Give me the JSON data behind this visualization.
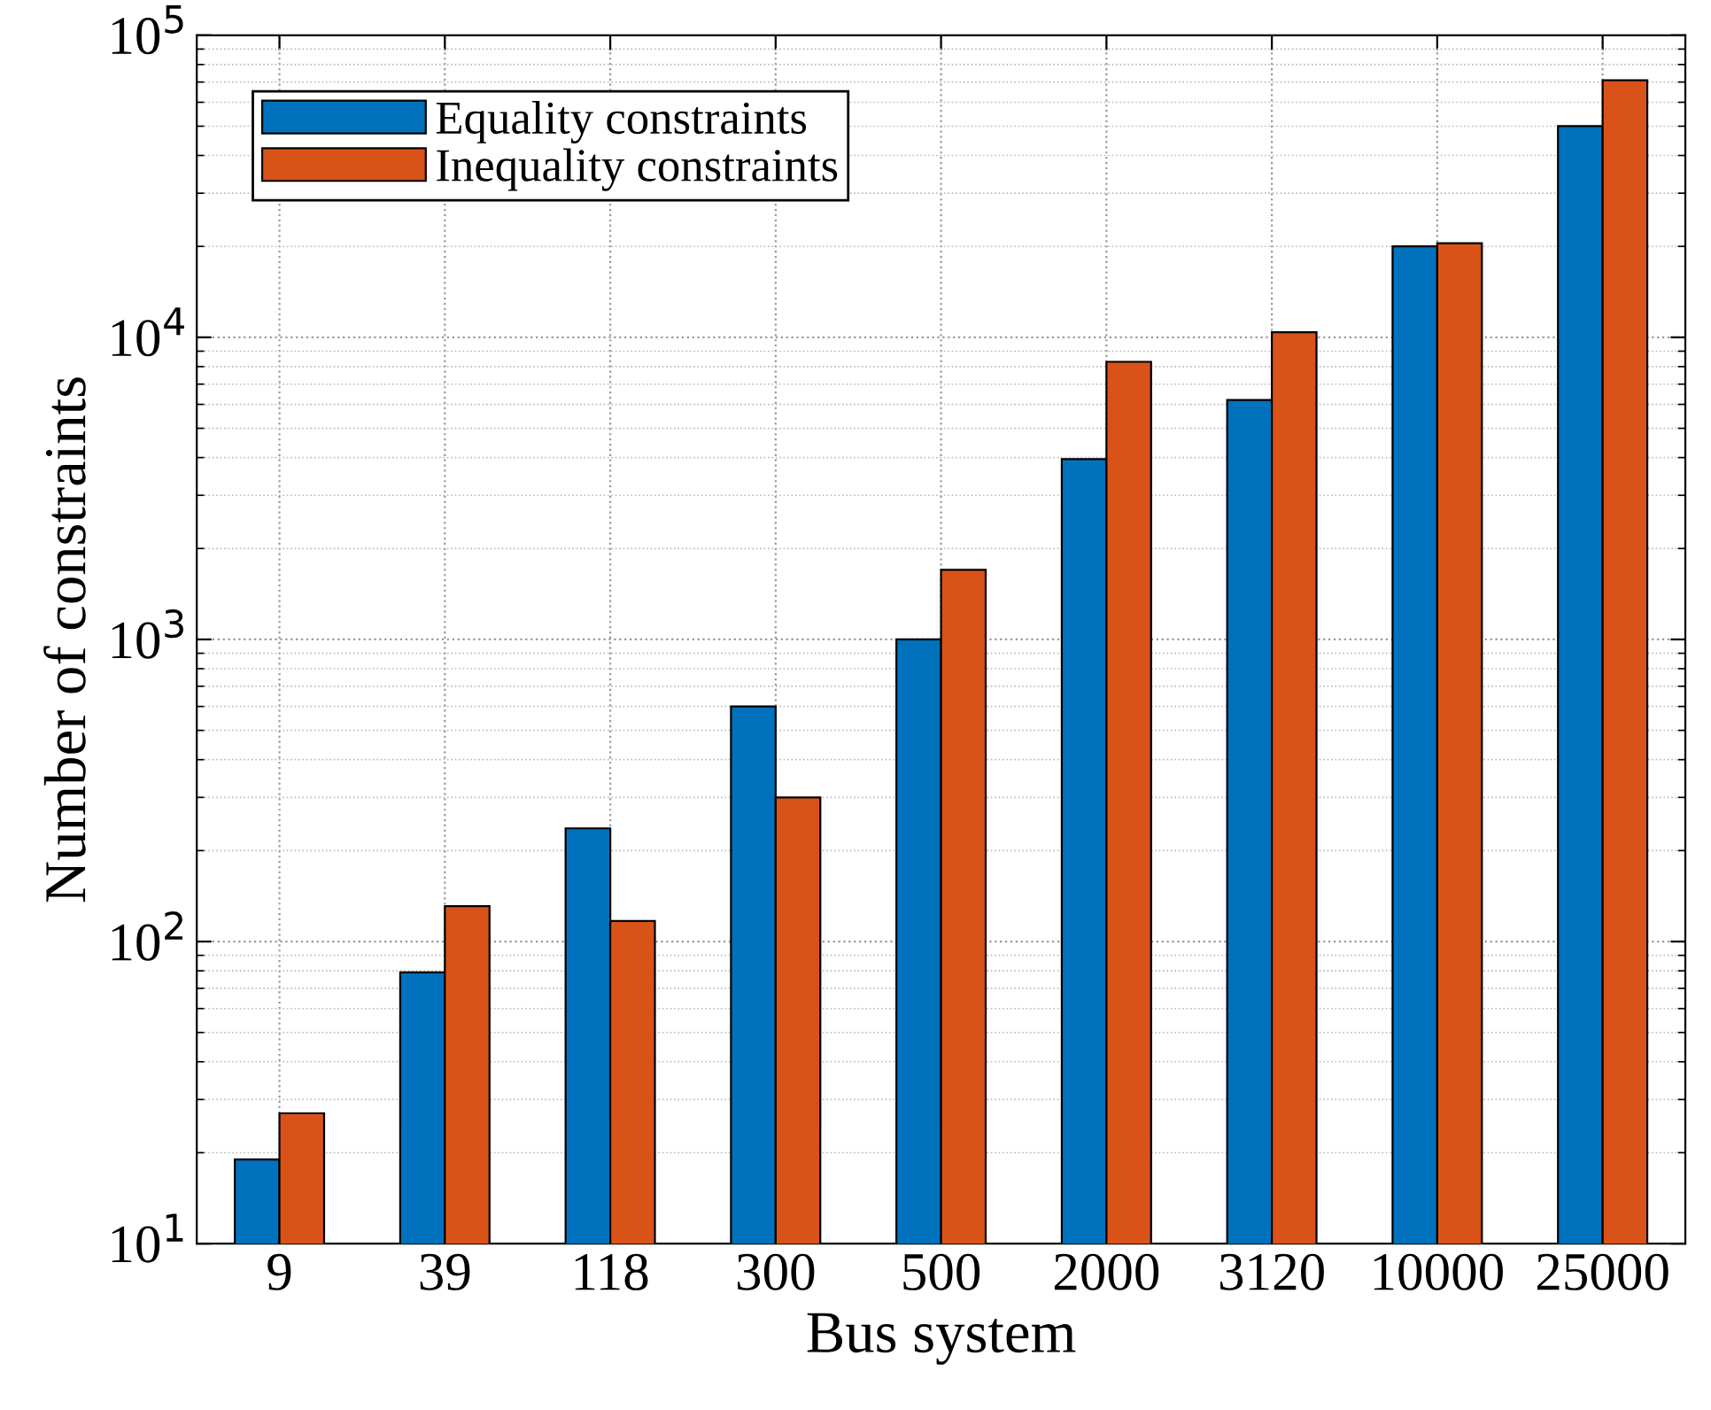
{
  "chart_data": {
    "type": "bar",
    "xlabel": "Bus system",
    "ylabel": "Number of constraints",
    "categories": [
      "9",
      "39",
      "118",
      "300",
      "500",
      "2000",
      "3120",
      "10000",
      "25000"
    ],
    "series": [
      {
        "name": "Equality constraints",
        "color": "#0072bd",
        "values": [
          19,
          79,
          237,
          600,
          1000,
          3950,
          6200,
          20000,
          50000
        ]
      },
      {
        "name": "Inequality constraints",
        "color": "#d95319",
        "values": [
          27,
          131,
          117,
          300,
          1700,
          8300,
          10400,
          20500,
          71000
        ]
      }
    ],
    "log": "y",
    "ylim": [
      10,
      100000
    ],
    "yticks": [
      {
        "value": 10,
        "label": "10$^{1}$"
      },
      {
        "value": 100,
        "label": "10$^{2}$"
      },
      {
        "value": 1000,
        "label": "10$^{3}$"
      },
      {
        "value": 10000,
        "label": "10$^{4}$"
      },
      {
        "value": 100000,
        "label": "10$^{5}$"
      }
    ],
    "grid": true,
    "legend": "top left"
  }
}
